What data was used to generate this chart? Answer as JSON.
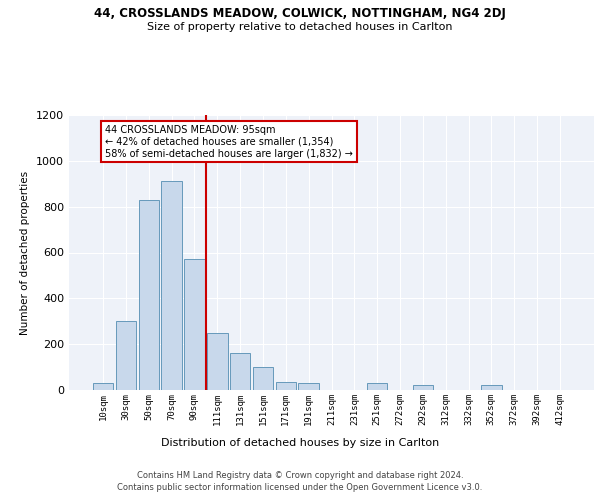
{
  "title1": "44, CROSSLANDS MEADOW, COLWICK, NOTTINGHAM, NG4 2DJ",
  "title2": "Size of property relative to detached houses in Carlton",
  "xlabel": "Distribution of detached houses by size in Carlton",
  "ylabel": "Number of detached properties",
  "footer1": "Contains HM Land Registry data © Crown copyright and database right 2024.",
  "footer2": "Contains public sector information licensed under the Open Government Licence v3.0.",
  "annotation_line1": "44 CROSSLANDS MEADOW: 95sqm",
  "annotation_line2": "← 42% of detached houses are smaller (1,354)",
  "annotation_line3": "58% of semi-detached houses are larger (1,832) →",
  "bar_labels": [
    "10sqm",
    "30sqm",
    "50sqm",
    "70sqm",
    "90sqm",
    "111sqm",
    "131sqm",
    "151sqm",
    "171sqm",
    "191sqm",
    "211sqm",
    "231sqm",
    "251sqm",
    "272sqm",
    "292sqm",
    "312sqm",
    "332sqm",
    "352sqm",
    "372sqm",
    "392sqm",
    "412sqm"
  ],
  "bar_values": [
    30,
    300,
    830,
    910,
    570,
    250,
    160,
    100,
    35,
    30,
    0,
    0,
    30,
    0,
    20,
    0,
    0,
    20,
    0,
    0,
    0
  ],
  "bar_color": "#c8d8eb",
  "bar_edge_color": "#6699bb",
  "background_color": "#eef2f9",
  "grid_color": "#ffffff",
  "red_line_color": "#cc0000",
  "ylim": [
    0,
    1200
  ],
  "yticks": [
    0,
    200,
    400,
    600,
    800,
    1000,
    1200
  ],
  "fig_width": 6.0,
  "fig_height": 5.0,
  "dpi": 100
}
